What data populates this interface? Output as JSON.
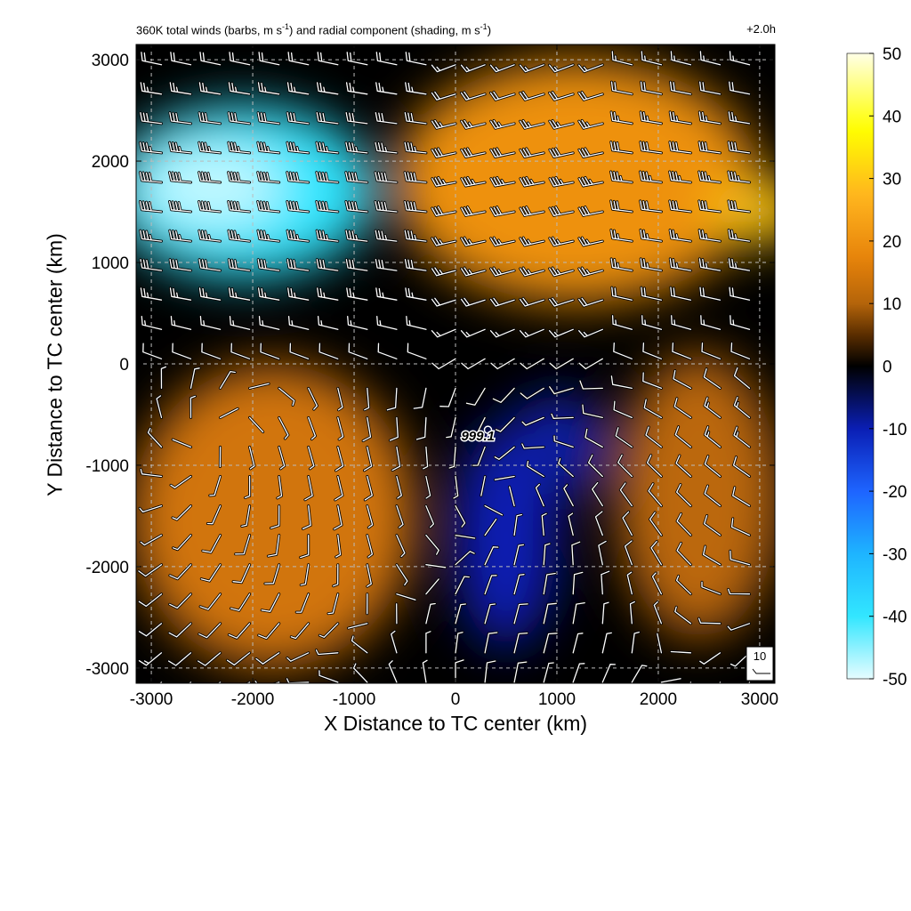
{
  "header": {
    "title_prefix": "360K total winds (barbs, m s",
    "title_sup1": "-1",
    "title_mid": ") and radial component (shading, m s",
    "title_sup2": "-1",
    "title_suffix": ")",
    "time_label": "+2.0h"
  },
  "chart_data": {
    "type": "heatmap",
    "title": "360K total winds (barbs, m s-1) and radial component (shading, m s-1)",
    "time": "+2.0h",
    "xlabel": "X Distance to TC center (km)",
    "ylabel": "Y Distance to TC center (km)",
    "xlim": [
      -3150,
      3150
    ],
    "ylim": [
      -3150,
      3150
    ],
    "xticks": [
      "-3000",
      "-2000",
      "-1000",
      "0",
      "1000",
      "2000",
      "3000"
    ],
    "yticks": [
      "3000",
      "2000",
      "1000",
      "0",
      "-1000",
      "-2000",
      "-3000"
    ],
    "tick_values": [
      -3000,
      -2000,
      -1000,
      0,
      1000,
      2000,
      3000
    ],
    "grid": true,
    "colorbar": {
      "label_values": [
        "50",
        "40",
        "30",
        "20",
        "10",
        "0",
        "-10",
        "-20",
        "-30",
        "-40",
        "-50"
      ],
      "range": [
        -50,
        50
      ],
      "colors": [
        "#000000",
        "#0a1eb4",
        "#1e64ff",
        "#1eb4ff",
        "#32e6ff",
        "#e6fcff",
        "#5a2d00",
        "#b4640a",
        "#e6820a",
        "#ffb41e",
        "#ffff00",
        "#ffffe6"
      ]
    },
    "regions": [
      {
        "name": "inflow-northwest",
        "cx": -2100,
        "cy": 1700,
        "rx": 1300,
        "ry": 850,
        "value": -40
      },
      {
        "name": "inflow-northwest-core",
        "cx": -2400,
        "cy": 1750,
        "rx": 700,
        "ry": 400,
        "value": -48
      },
      {
        "name": "outflow-northeast",
        "cx": 1200,
        "cy": 1800,
        "rx": 1800,
        "ry": 1200,
        "value": 20
      },
      {
        "name": "outflow-east-core",
        "cx": 3000,
        "cy": 1500,
        "rx": 500,
        "ry": 300,
        "value": 30
      },
      {
        "name": "outflow-southwest",
        "cx": -1800,
        "cy": -1500,
        "rx": 1400,
        "ry": 1500,
        "value": 14
      },
      {
        "name": "inflow-south",
        "cx": 500,
        "cy": -1700,
        "rx": 500,
        "ry": 1100,
        "value": -10
      },
      {
        "name": "inflow-southeast",
        "cx": 1000,
        "cy": -800,
        "rx": 500,
        "ry": 500,
        "value": -9
      },
      {
        "name": "outflow-southeast",
        "cx": 2400,
        "cy": -1300,
        "rx": 800,
        "ry": 1400,
        "value": 11
      }
    ],
    "center_marker": {
      "x": 320,
      "y": -650,
      "label": "999.1"
    },
    "reference_barb": {
      "speed_label": "10"
    },
    "barb_spacing_km": 290
  }
}
